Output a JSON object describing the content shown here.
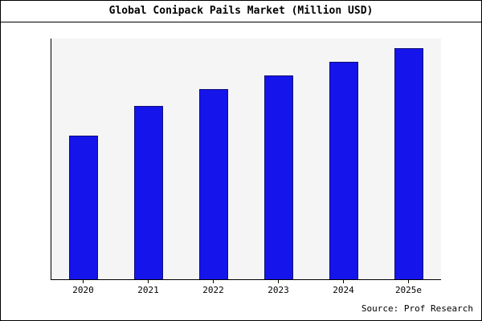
{
  "title": "Global Conipack Pails Market (Million USD)",
  "source_label": "Source: Prof Research",
  "colors": {
    "bar_fill": "#1414eb",
    "bar_border": "#101077",
    "plot_bg": "#f5f5f5",
    "axis": "#000000",
    "frame_border": "#000000"
  },
  "chart_data": {
    "type": "bar",
    "title": "Global Conipack Pails Market (Million USD)",
    "categories": [
      "2020",
      "2021",
      "2022",
      "2023",
      "2024",
      "2025e"
    ],
    "values": [
      62,
      75,
      82,
      88,
      94,
      100
    ],
    "xlabel": "",
    "ylabel": "",
    "ylim": [
      0,
      104
    ],
    "grid": false,
    "legend": "none",
    "value_note": "no y-axis tick labels visible; values estimated relative to tallest bar (2025e = 100)"
  }
}
